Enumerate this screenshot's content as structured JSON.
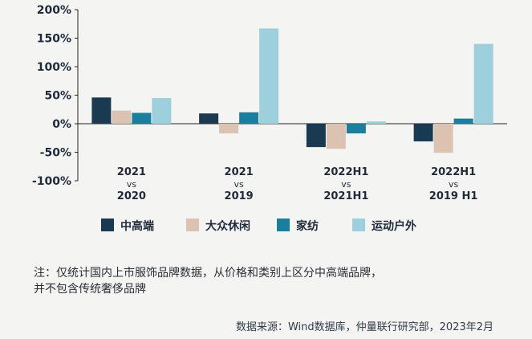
{
  "chart_data": {
    "type": "bar",
    "categories": [
      [
        "2021",
        "vs",
        "2020"
      ],
      [
        "2021",
        "vs",
        "2019"
      ],
      [
        "2022H1",
        "vs",
        "2021H1"
      ],
      [
        "2022H1",
        "vs",
        "2019 H1"
      ]
    ],
    "series": [
      {
        "name": "中高端",
        "color": "#1a3a52",
        "values": [
          46,
          18,
          -41,
          -31
        ]
      },
      {
        "name": "大众休闲",
        "color": "#dcc2b0",
        "values": [
          23,
          -17,
          -44,
          -51
        ]
      },
      {
        "name": "家纺",
        "color": "#1a7f9f",
        "values": [
          19,
          20,
          -17,
          9
        ]
      },
      {
        "name": "运动户外",
        "color": "#9ecfdc",
        "values": [
          45,
          167,
          4,
          140
        ]
      }
    ],
    "yticks": [
      "200%",
      "150%",
      "100%",
      "50%",
      "0%",
      "-50%",
      "-100%"
    ],
    "ytick_values": [
      200,
      150,
      100,
      50,
      0,
      -50,
      -100
    ],
    "ylim": [
      -100,
      200
    ],
    "grid": false,
    "legend_position": "bottom"
  },
  "note": {
    "line1": "注：仅统计国内上市服饰品牌数据，从价格和类别上区分中高端品牌，",
    "line2": "并不包含传统奢侈品牌"
  },
  "source": "数据来源：Wind数据库，仲量联行研究部，2023年2月"
}
